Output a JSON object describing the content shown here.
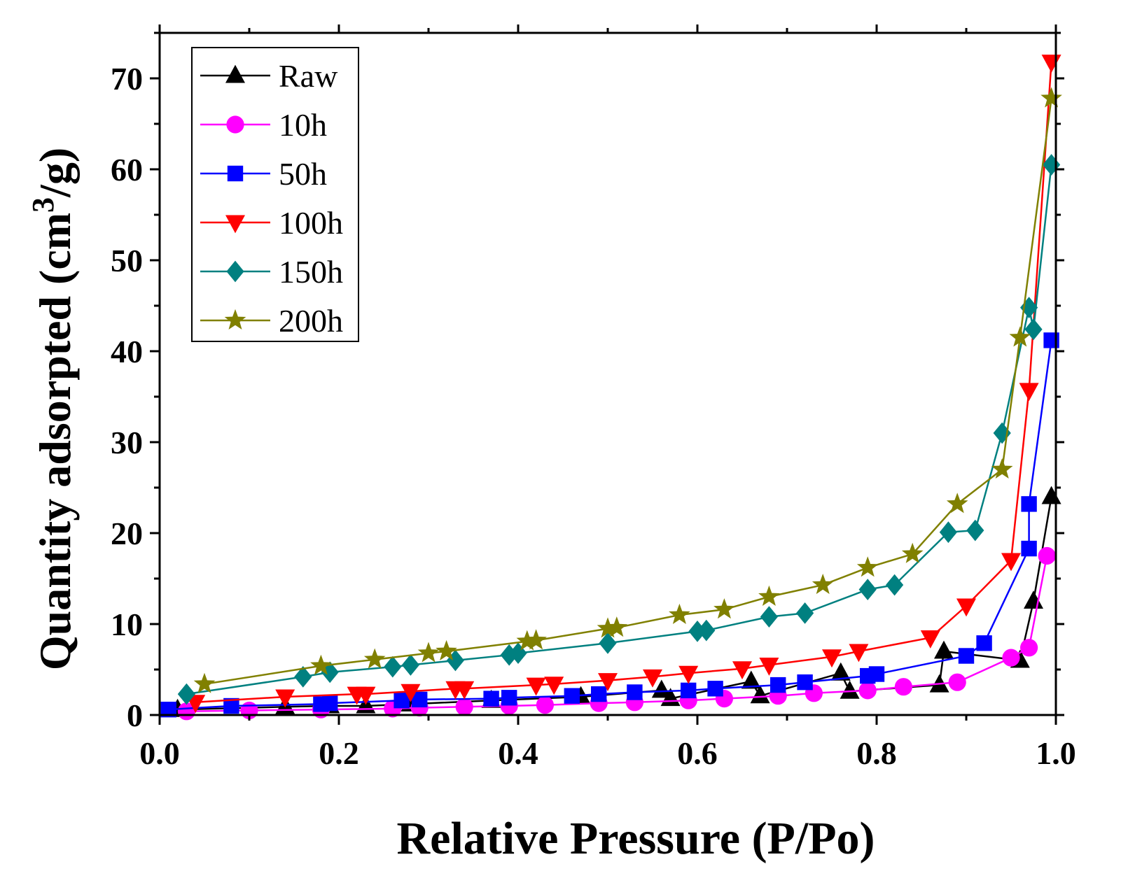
{
  "chart_data": {
    "type": "line",
    "title": "",
    "xlabel": "Relative Pressure (P/Po)",
    "ylabel_parts": {
      "main": "Quantity adsorpted (cm",
      "sup": "3",
      "end": "/g)"
    },
    "xlim": [
      0.0,
      1.0
    ],
    "ylim": [
      0,
      75
    ],
    "x_ticks": [
      "0.0",
      "0.2",
      "0.4",
      "0.6",
      "0.8",
      "1.0"
    ],
    "y_ticks": [
      "0",
      "10",
      "20",
      "30",
      "40",
      "50",
      "60",
      "70"
    ],
    "legend_position": "top-left",
    "grid": false,
    "series": [
      {
        "name": "Raw",
        "color": "#000000",
        "marker": "triangle-up",
        "x": [
          0.02,
          0.14,
          0.19,
          0.23,
          0.28,
          0.37,
          0.47,
          0.56,
          0.57,
          0.66,
          0.67,
          0.76,
          0.77,
          0.87,
          0.875,
          0.96,
          0.975,
          0.995
        ],
        "y": [
          0.6,
          0.9,
          1.0,
          1.0,
          1.2,
          1.6,
          2.0,
          2.7,
          1.8,
          3.7,
          2.1,
          4.6,
          2.6,
          3.3,
          7.0,
          6.0,
          12.5,
          24.0
        ]
      },
      {
        "name": "10h",
        "color": "#ff00ff",
        "marker": "circle",
        "x": [
          0.03,
          0.1,
          0.18,
          0.26,
          0.29,
          0.34,
          0.39,
          0.43,
          0.49,
          0.53,
          0.59,
          0.63,
          0.69,
          0.73,
          0.79,
          0.83,
          0.89,
          0.95,
          0.97,
          0.99
        ],
        "y": [
          0.4,
          0.5,
          0.6,
          0.7,
          0.8,
          0.9,
          1.0,
          1.1,
          1.3,
          1.4,
          1.6,
          1.8,
          2.1,
          2.4,
          2.7,
          3.1,
          3.6,
          6.3,
          7.4,
          17.5
        ]
      },
      {
        "name": "50h",
        "color": "#0000ff",
        "marker": "square",
        "x": [
          0.01,
          0.08,
          0.18,
          0.19,
          0.27,
          0.29,
          0.37,
          0.39,
          0.46,
          0.49,
          0.53,
          0.59,
          0.62,
          0.69,
          0.72,
          0.79,
          0.8,
          0.9,
          0.92,
          0.97,
          0.97,
          0.995
        ],
        "y": [
          0.6,
          1.0,
          1.2,
          1.3,
          1.6,
          1.7,
          1.8,
          1.9,
          2.1,
          2.3,
          2.5,
          2.7,
          2.9,
          3.3,
          3.6,
          4.3,
          4.5,
          6.5,
          7.9,
          18.3,
          23.2,
          41.2
        ]
      },
      {
        "name": "100h",
        "color": "#ff0000",
        "marker": "triangle-down",
        "x": [
          0.04,
          0.14,
          0.22,
          0.23,
          0.28,
          0.33,
          0.34,
          0.42,
          0.44,
          0.5,
          0.55,
          0.59,
          0.65,
          0.68,
          0.75,
          0.78,
          0.86,
          0.9,
          0.95,
          0.97,
          0.995
        ],
        "y": [
          1.4,
          2.0,
          2.3,
          2.3,
          2.6,
          2.9,
          2.9,
          3.3,
          3.4,
          3.8,
          4.2,
          4.6,
          5.1,
          5.5,
          6.4,
          7.0,
          8.5,
          12.0,
          17.0,
          35.7,
          71.8
        ]
      },
      {
        "name": "150h",
        "color": "#008080",
        "marker": "diamond",
        "x": [
          0.03,
          0.16,
          0.19,
          0.26,
          0.28,
          0.33,
          0.39,
          0.4,
          0.5,
          0.6,
          0.61,
          0.68,
          0.72,
          0.79,
          0.82,
          0.88,
          0.91,
          0.94,
          0.97,
          0.975,
          0.995
        ],
        "y": [
          2.3,
          4.2,
          4.7,
          5.3,
          5.5,
          6.0,
          6.6,
          6.8,
          7.9,
          9.2,
          9.3,
          10.8,
          11.2,
          13.8,
          14.3,
          20.1,
          20.3,
          31.0,
          44.8,
          42.4,
          60.5
        ]
      },
      {
        "name": "200h",
        "color": "#808000",
        "marker": "star",
        "x": [
          0.05,
          0.18,
          0.24,
          0.3,
          0.32,
          0.41,
          0.42,
          0.5,
          0.51,
          0.58,
          0.63,
          0.68,
          0.74,
          0.79,
          0.84,
          0.89,
          0.94,
          0.96,
          0.995
        ],
        "y": [
          3.4,
          5.4,
          6.1,
          6.8,
          7.0,
          8.1,
          8.2,
          9.5,
          9.6,
          11.0,
          11.6,
          13.0,
          14.3,
          16.2,
          17.7,
          23.2,
          27.0,
          41.5,
          67.8
        ]
      }
    ]
  }
}
